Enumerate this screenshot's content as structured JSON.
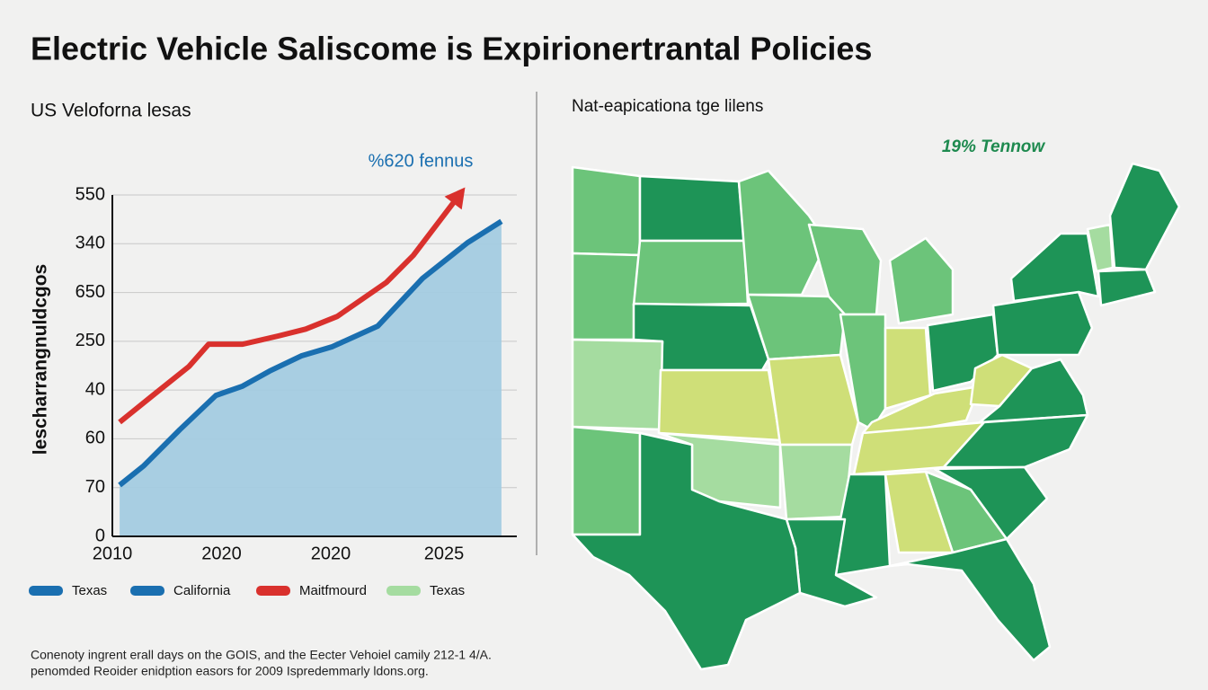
{
  "title": "Electric Vehicle Saliscome is Expirionertrantal Policies",
  "chart_data": {
    "type": "line",
    "title": "US Veloforna lesas",
    "y_label": "lescharrangnuldcgos",
    "annotation": "%620 fennus",
    "xlim": [
      0,
      10
    ],
    "xticks": [
      {
        "value": 0,
        "label": "2010"
      },
      {
        "value": 2.7,
        "label": "2020"
      },
      {
        "value": 5.4,
        "label": "2020"
      },
      {
        "value": 8.2,
        "label": "2025"
      }
    ],
    "ylim": [
      0,
      7
    ],
    "yticks": [
      {
        "value": 0,
        "label": "0"
      },
      {
        "value": 1,
        "label": "70"
      },
      {
        "value": 2,
        "label": "60"
      },
      {
        "value": 3,
        "label": "40"
      },
      {
        "value": 4,
        "label": "250"
      },
      {
        "value": 5,
        "label": "650"
      },
      {
        "value": 6,
        "label": "340"
      },
      {
        "value": 7,
        "label": "550"
      }
    ],
    "grid": true,
    "series": [
      {
        "name": "Texas",
        "color": "#1a6fb0",
        "fill": "#a3cbe0",
        "x": [
          0.18,
          0.78,
          1.67,
          2.56,
          3.22,
          3.89,
          4.67,
          5.44,
          6.56,
          7.67,
          8.78,
          9.62
        ],
        "values": [
          1.05,
          1.45,
          2.19,
          2.89,
          3.08,
          3.39,
          3.7,
          3.89,
          4.31,
          5.29,
          6.02,
          6.46
        ]
      },
      {
        "name": "Maitfmourd",
        "color": "#d9312d",
        "x": [
          0.18,
          1.0,
          1.89,
          2.38,
          3.22,
          4.11,
          4.78,
          5.56,
          6.78,
          7.44,
          8.56
        ],
        "values": [
          2.34,
          2.89,
          3.48,
          3.94,
          3.94,
          4.11,
          4.25,
          4.51,
          5.21,
          5.76,
          6.98
        ]
      }
    ],
    "legend": [
      {
        "label": "Texas",
        "color": "#1a6fb0"
      },
      {
        "label": "California",
        "color": "#1a6fb0"
      },
      {
        "label": "Maitfmourd",
        "color": "#d9312d"
      },
      {
        "label": "Texas",
        "color": "#a5dca0"
      }
    ]
  },
  "map": {
    "title": "Nat-eapicationa tge lilens",
    "annotation": "19% Tennow"
  },
  "footer": [
    "Conenoty ingrent erall days on the GOIS, and the Eecter Vehoiel camily 212-1 4/A.",
    "penomded Reoider enidption easors for 2009 Ispredemmarly ldons.org."
  ]
}
